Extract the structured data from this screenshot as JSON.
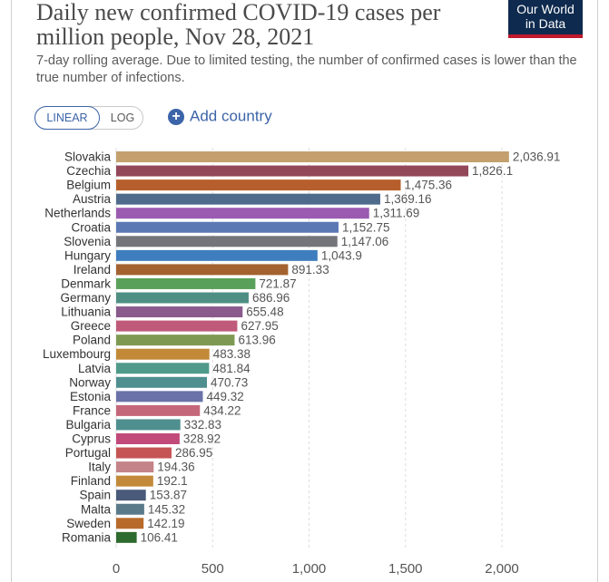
{
  "header": {
    "title": "Daily new confirmed COVID-19 cases per million people, Nov 28, 2021",
    "subtitle": "7-day rolling average. Due to limited testing, the number of confirmed cases is lower than the true number of infections.",
    "logo_line1": "Our World",
    "logo_line2": "in Data"
  },
  "controls": {
    "linear_label": "LINEAR",
    "log_label": "LOG",
    "add_country_label": "Add country",
    "add_icon": "plus-circle-icon",
    "accent_color": "#3c64a8"
  },
  "chart_data": {
    "type": "bar",
    "orientation": "horizontal",
    "categories": [
      "Slovakia",
      "Czechia",
      "Belgium",
      "Austria",
      "Netherlands",
      "Croatia",
      "Slovenia",
      "Hungary",
      "Ireland",
      "Denmark",
      "Germany",
      "Lithuania",
      "Greece",
      "Poland",
      "Luxembourg",
      "Latvia",
      "Norway",
      "Estonia",
      "France",
      "Bulgaria",
      "Cyprus",
      "Portugal",
      "Italy",
      "Finland",
      "Spain",
      "Malta",
      "Sweden",
      "Romania"
    ],
    "values": [
      2036.91,
      1826.1,
      1475.36,
      1369.16,
      1311.69,
      1152.75,
      1147.06,
      1043.9,
      891.33,
      721.87,
      686.96,
      655.48,
      627.95,
      613.96,
      483.38,
      481.84,
      470.73,
      449.32,
      434.22,
      332.83,
      328.92,
      286.95,
      194.36,
      192.1,
      153.87,
      145.32,
      142.19,
      106.41
    ],
    "value_labels": [
      "2,036.91",
      "1,826.1",
      "1,475.36",
      "1,369.16",
      "1,311.69",
      "1,152.75",
      "1,147.06",
      "1,043.9",
      "891.33",
      "721.87",
      "686.96",
      "655.48",
      "627.95",
      "613.96",
      "483.38",
      "481.84",
      "470.73",
      "449.32",
      "434.22",
      "332.83",
      "328.92",
      "286.95",
      "194.36",
      "192.1",
      "153.87",
      "145.32",
      "142.19",
      "106.41"
    ],
    "colors": [
      "#c4a06e",
      "#93485a",
      "#b75f2c",
      "#4f6b8c",
      "#9a5bb0",
      "#5b78b4",
      "#73757a",
      "#3f7ebe",
      "#a3622f",
      "#59a05a",
      "#4f8f83",
      "#8a5a8c",
      "#c05a7a",
      "#7e9a52",
      "#c28a38",
      "#4f9a8a",
      "#4f8f8f",
      "#6a72a8",
      "#c5677a",
      "#4f8f8f",
      "#c24a7a",
      "#c65454",
      "#c48388",
      "#c28a3a",
      "#4a5a7a",
      "#5a7a8a",
      "#b86a2a",
      "#2e6b2e"
    ],
    "x_ticks": [
      "0",
      "500",
      "1,000",
      "1,500",
      "2,000"
    ],
    "x_tick_values": [
      0,
      500,
      1000,
      1500,
      2000
    ],
    "xlim": [
      0,
      2050
    ],
    "grid": true
  }
}
